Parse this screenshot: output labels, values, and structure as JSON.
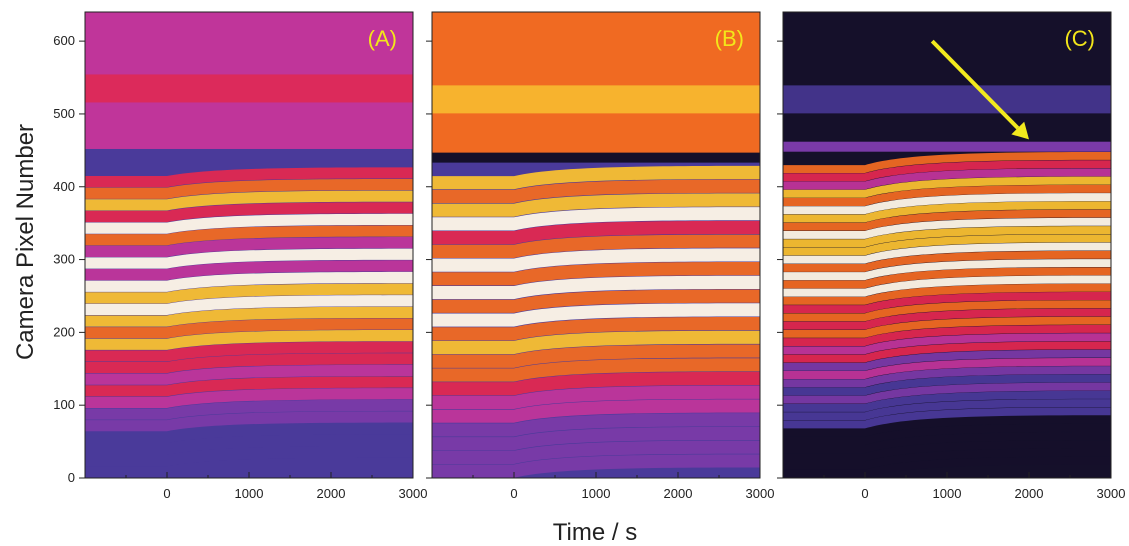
{
  "chart_data": {
    "type": "heatmap",
    "xlabel": "Time / s",
    "ylabel": "Camera Pixel Number",
    "xlim": [
      -1000,
      3000
    ],
    "ylim": [
      0,
      640
    ],
    "x_ticks": [
      0,
      1000,
      2000,
      3000
    ],
    "x_tick_labels": [
      "0",
      "1000",
      "2000",
      "3000"
    ],
    "y_ticks": [
      0,
      100,
      200,
      300,
      400,
      500,
      600
    ],
    "y_tick_labels": [
      "0",
      "100",
      "200",
      "300",
      "400",
      "500",
      "600"
    ],
    "step_time": 0,
    "colors": {
      "dark": "#15102a",
      "blue": "#4a3a9a",
      "violet": "#7a3aa8",
      "magenta": "#c0359a",
      "red": "#e02850",
      "orange": "#f06a22",
      "yellow": "#f8c030",
      "white": "#fff8e8",
      "arrow": "#f2ea1e"
    },
    "panels": [
      {
        "label": "(A)",
        "background_above": "magenta",
        "background_band": {
          "y_center": 535,
          "color": "red"
        },
        "boundary_y": 445,
        "fringe_region": [
          0,
          415
        ],
        "fringe_count": 26,
        "fringe_shift": 12
      },
      {
        "label": "(B)",
        "background_above": "orange",
        "background_band": {
          "y_center": 520,
          "color": "yellow"
        },
        "boundary_y": 440,
        "fringe_region": [
          0,
          415
        ],
        "fringe_count": 22,
        "fringe_shift": 14
      },
      {
        "label": "(C)",
        "background_above": "dark",
        "background_band": {
          "y_center": 520,
          "color": "blue"
        },
        "boundary_y": 455,
        "fringe_region": [
          0,
          430
        ],
        "fringe_count": 38,
        "fringe_shift": 18,
        "arrow": {
          "from": [
            820,
            600
          ],
          "to": [
            2000,
            465
          ]
        }
      }
    ]
  }
}
